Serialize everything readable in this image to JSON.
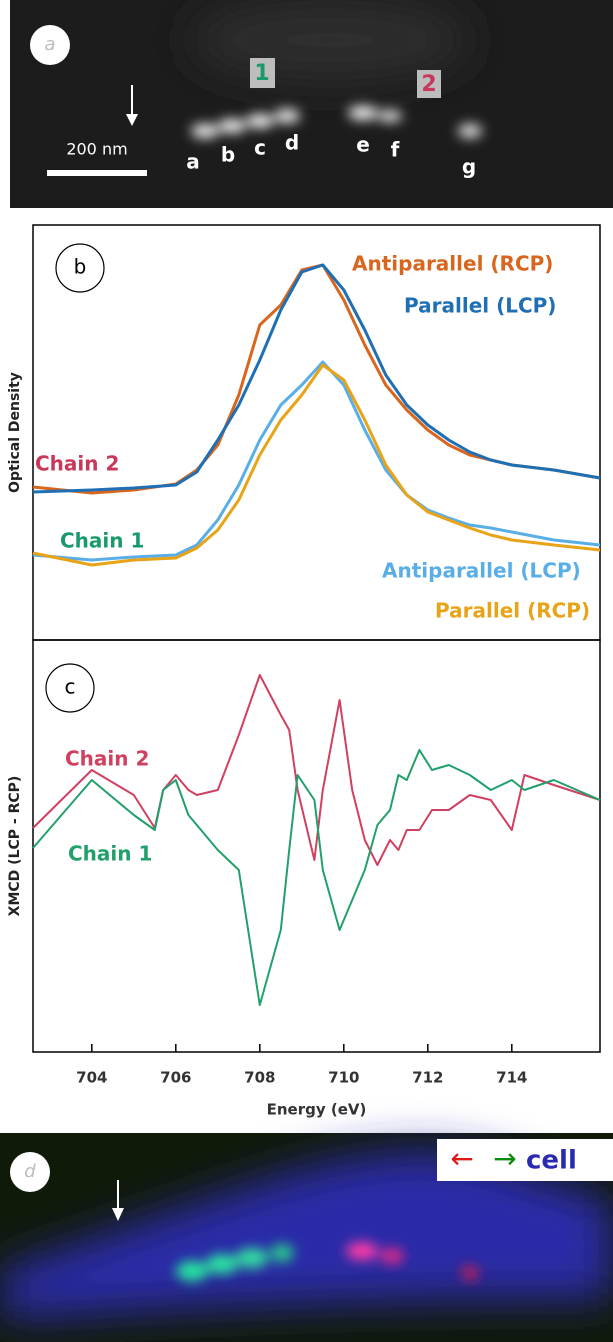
{
  "image_a": {
    "panel_label": "a",
    "scale_bar": "200 nm",
    "chain_labels": [
      "1",
      "2"
    ],
    "spot_labels": [
      "a",
      "b",
      "c",
      "d",
      "e",
      "f",
      "g"
    ]
  },
  "chart_data": [
    {
      "type": "line",
      "panel_label": "b",
      "ylabel": "Optical Density",
      "xlim": [
        702.6,
        716.1
      ],
      "ylim": [
        0,
        415
      ],
      "x": [
        702.6,
        704,
        705,
        706,
        706.5,
        707,
        707.5,
        708,
        708.5,
        709,
        709.5,
        710,
        710.5,
        711,
        711.5,
        712,
        712.5,
        713,
        713.5,
        714,
        715,
        716.1
      ],
      "series": [
        {
          "name": "Antiparallel (RCP)",
          "color": "#d9661f",
          "values": [
            153,
            147,
            150,
            156,
            170,
            195,
            245,
            315,
            335,
            370,
            375,
            340,
            295,
            255,
            230,
            210,
            195,
            185,
            180,
            175,
            170,
            162
          ]
        },
        {
          "name": "Parallel (LCP)",
          "color": "#1f6fb5",
          "values": [
            148,
            150,
            152,
            155,
            168,
            200,
            235,
            280,
            330,
            368,
            375,
            350,
            310,
            265,
            235,
            215,
            200,
            188,
            180,
            175,
            170,
            162
          ]
        },
        {
          "name": "Antiparallel (LCP)",
          "color": "#5aaee6",
          "values": [
            85,
            80,
            83,
            85,
            95,
            120,
            155,
            200,
            235,
            255,
            278,
            255,
            210,
            170,
            145,
            130,
            122,
            115,
            112,
            108,
            100,
            95
          ]
        },
        {
          "name": "Parallel (RCP)",
          "color": "#e8a317",
          "values": [
            87,
            75,
            80,
            82,
            92,
            110,
            140,
            185,
            220,
            245,
            275,
            260,
            220,
            175,
            145,
            128,
            120,
            112,
            105,
            100,
            95,
            90
          ]
        }
      ],
      "annotations": [
        {
          "text": "Chain 2",
          "color": "#c8385a"
        },
        {
          "text": "Chain 1",
          "color": "#1a9a6a"
        }
      ]
    },
    {
      "type": "line",
      "panel_label": "c",
      "ylabel": "XMCD (LCP - RCP)",
      "xlabel": "Energy (eV)",
      "xlim": [
        702.6,
        716.1
      ],
      "ylim": [
        0,
        412
      ],
      "xticks": [
        704,
        706,
        708,
        710,
        712,
        714
      ],
      "x": [
        702.6,
        704,
        705,
        705.5,
        705.7,
        706,
        706.3,
        706.5,
        707,
        707.5,
        708,
        708.5,
        708.7,
        708.9,
        709.3,
        709.5,
        709.9,
        710.2,
        710.5,
        710.8,
        711.1,
        711.3,
        711.5,
        711.8,
        712.1,
        712.5,
        713,
        713.5,
        714,
        714.3,
        715,
        716.1
      ],
      "series": [
        {
          "name": "Chain 2",
          "color": "#d04060",
          "values": [
            224,
            282,
            257,
            224,
            262,
            277,
            262,
            257,
            262,
            317,
            377,
            337,
            322,
            262,
            192,
            262,
            352,
            262,
            212,
            187,
            212,
            202,
            222,
            222,
            242,
            242,
            257,
            252,
            222,
            277,
            267,
            252
          ]
        },
        {
          "name": "Chain 1",
          "color": "#22a06b",
          "values": [
            204,
            272,
            237,
            222,
            262,
            272,
            237,
            227,
            202,
            182,
            47,
            122,
            202,
            277,
            252,
            182,
            122,
            152,
            182,
            227,
            242,
            277,
            272,
            302,
            282,
            287,
            277,
            262,
            272,
            262,
            272,
            252
          ]
        }
      ]
    }
  ],
  "image_d": {
    "panel_label": "d",
    "legend": [
      "←",
      "→",
      "cell"
    ]
  }
}
